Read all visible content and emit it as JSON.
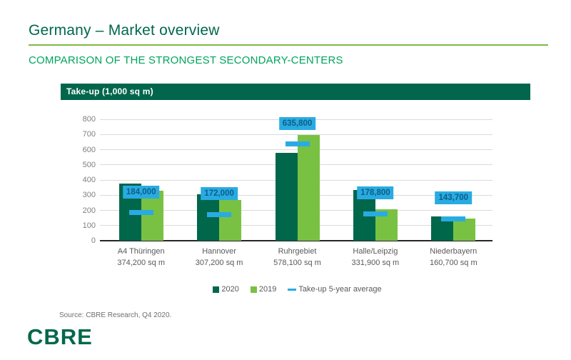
{
  "slide": {
    "title": "Germany – Market overview",
    "subtitle": "COMPARISON OF THE STRONGEST SECONDARY-CENTERS",
    "source": "Source: CBRE Research, Q4 2020.",
    "logo": "CBRE"
  },
  "colors": {
    "title_green": "#00684B",
    "subtitle_green": "#00A45C",
    "underline_green": "#7FBB44",
    "header_bar_bg": "#01664B",
    "bar_2020": "#01674B",
    "bar_2019": "#79C143",
    "avg_blue": "#29ABE2",
    "avg_label_text": "#0D5E86",
    "gridline": "#DBDBDB",
    "axis_line": "#262626",
    "axis_text": "#7F7F7F",
    "category_text": "#595959"
  },
  "chart_data": {
    "type": "bar",
    "title": "Take-up (1,000 sq m)",
    "categories": [
      "A4 Thüringen",
      "Hannover",
      "Ruhrgebiet",
      "Halle/Leipzig",
      "Niederbayern"
    ],
    "category_sublabels": [
      "374,200 sq m",
      "307,200 sq m",
      "578,100 sq m",
      "331,900 sq m",
      "160,700 sq m"
    ],
    "series": [
      {
        "name": "2020",
        "color": "#01674B",
        "values": [
          374.2,
          307.2,
          578.1,
          331.9,
          160.7
        ]
      },
      {
        "name": "2019",
        "color": "#79C143",
        "values": [
          330,
          268,
          695,
          207,
          148
        ]
      }
    ],
    "markers": {
      "name": "Take-up 5-year average",
      "color": "#29ABE2",
      "values": [
        184.0,
        172.0,
        635.8,
        178.8,
        143.7
      ],
      "labels": [
        "184,000",
        "172,000",
        "635,800",
        "178,800",
        "143,700"
      ]
    },
    "ylim": [
      0,
      800
    ],
    "ytick_step": 100,
    "grid": true,
    "legend_position": "bottom"
  },
  "legend": [
    {
      "label": "2020",
      "swatch": "square",
      "color": "#01674B"
    },
    {
      "label": "2019",
      "swatch": "square",
      "color": "#79C143"
    },
    {
      "label": "Take-up 5-year average",
      "swatch": "dash",
      "color": "#29ABE2"
    }
  ]
}
